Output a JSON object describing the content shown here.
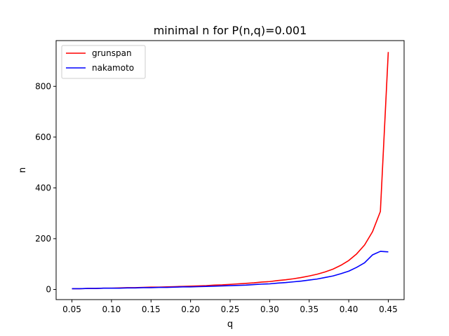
{
  "chart_data": {
    "type": "line",
    "title": "minimal n for P(n,q)=0.001",
    "xlabel": "q",
    "ylabel": "n",
    "xlim": [
      0.03,
      0.47
    ],
    "ylim": [
      -40,
      980
    ],
    "xticks": [
      0.05,
      0.1,
      0.15,
      0.2,
      0.25,
      0.3,
      0.35,
      0.4,
      0.45
    ],
    "xtick_labels": [
      "0.05",
      "0.10",
      "0.15",
      "0.20",
      "0.25",
      "0.30",
      "0.35",
      "0.40",
      "0.45"
    ],
    "yticks": [
      0,
      200,
      400,
      600,
      800
    ],
    "ytick_labels": [
      "0",
      "200",
      "400",
      "600",
      "800"
    ],
    "grid": false,
    "legend_position": "top-left",
    "x": [
      0.05,
      0.06,
      0.07,
      0.08,
      0.09,
      0.1,
      0.11,
      0.12,
      0.13,
      0.14,
      0.15,
      0.16,
      0.17,
      0.18,
      0.19,
      0.2,
      0.21,
      0.22,
      0.23,
      0.24,
      0.25,
      0.26,
      0.27,
      0.28,
      0.29,
      0.3,
      0.31,
      0.32,
      0.33,
      0.34,
      0.35,
      0.36,
      0.37,
      0.38,
      0.39,
      0.4,
      0.41,
      0.42,
      0.43,
      0.44,
      0.45
    ],
    "series": [
      {
        "name": "grunspan",
        "color": "#ff0000",
        "values": [
          3,
          3,
          4,
          4,
          5,
          5,
          6,
          7,
          7,
          8,
          9,
          9,
          10,
          11,
          12,
          13,
          14,
          15,
          17,
          18,
          20,
          22,
          24,
          26,
          29,
          31,
          35,
          38,
          42,
          47,
          53,
          60,
          69,
          80,
          95,
          114,
          140,
          175,
          227,
          307,
          935
        ]
      },
      {
        "name": "nakamoto",
        "color": "#0000ff",
        "values": [
          3,
          3,
          4,
          4,
          5,
          5,
          5,
          6,
          6,
          7,
          7,
          8,
          8,
          9,
          10,
          10,
          11,
          12,
          13,
          14,
          15,
          16,
          17,
          19,
          21,
          22,
          25,
          27,
          30,
          33,
          37,
          41,
          47,
          53,
          62,
          72,
          87,
          105,
          136,
          150,
          148
        ]
      }
    ]
  }
}
